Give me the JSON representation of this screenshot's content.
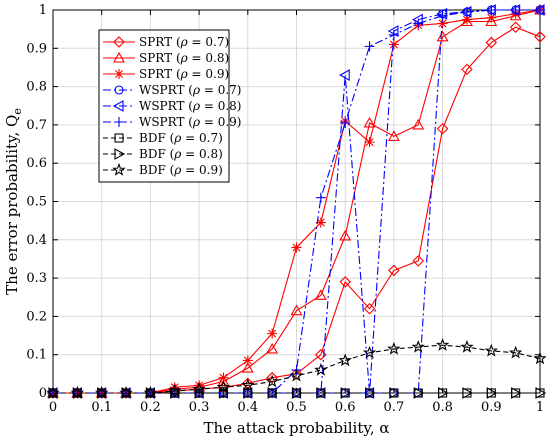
{
  "chart_data": {
    "type": "line",
    "xlabel": "The attack probability, α",
    "ylabel": "The error probability, Q",
    "ylabel_sub": "e",
    "xlim": [
      0,
      1
    ],
    "ylim": [
      0,
      1
    ],
    "x_ticks": [
      0,
      0.1,
      0.2,
      0.3,
      0.4,
      0.5,
      0.6,
      0.7,
      0.8,
      0.9,
      1
    ],
    "y_ticks": [
      0,
      0.1,
      0.2,
      0.3,
      0.4,
      0.5,
      0.6,
      0.7,
      0.8,
      0.9,
      1
    ],
    "x_tick_labels": [
      "0",
      "0.1",
      "0.2",
      "0.3",
      "0.4",
      "0.5",
      "0.6",
      "0.7",
      "0.8",
      "0.9",
      "1"
    ],
    "y_tick_labels": [
      "0",
      "0.1",
      "0.2",
      "0.3",
      "0.4",
      "0.5",
      "0.6",
      "0.7",
      "0.8",
      "0.9",
      "1"
    ],
    "grid": true,
    "legend_position": "upper-left",
    "x": [
      0,
      0.05,
      0.1,
      0.15,
      0.2,
      0.25,
      0.3,
      0.35,
      0.4,
      0.45,
      0.5,
      0.55,
      0.6,
      0.65,
      0.7,
      0.75,
      0.8,
      0.85,
      0.9,
      0.95,
      1.0
    ],
    "series": [
      {
        "name": "SPRT (ρ = 0.7)",
        "label_base": "SPRT",
        "rho": "0.7",
        "color": "#ff0000",
        "dash": "solid",
        "marker": "diamond",
        "values": [
          0,
          0,
          0,
          0,
          0,
          0.005,
          0.01,
          0.015,
          0.025,
          0.04,
          0.05,
          0.1,
          0.29,
          0.22,
          0.32,
          0.345,
          0.69,
          0.845,
          0.915,
          0.955,
          0.93
        ]
      },
      {
        "name": "SPRT (ρ = 0.8)",
        "label_base": "SPRT",
        "rho": "0.8",
        "color": "#ff0000",
        "dash": "solid",
        "marker": "triangle-up",
        "values": [
          0,
          0,
          0,
          0,
          0,
          0.01,
          0.015,
          0.03,
          0.065,
          0.115,
          0.215,
          0.255,
          0.41,
          0.705,
          0.67,
          0.7,
          0.93,
          0.97,
          0.97,
          0.985,
          1.0
        ]
      },
      {
        "name": "SPRT (ρ = 0.9)",
        "label_base": "SPRT",
        "rho": "0.9",
        "color": "#ff0000",
        "dash": "solid",
        "marker": "asterisk",
        "values": [
          0,
          0,
          0,
          0,
          0,
          0.015,
          0.02,
          0.04,
          0.085,
          0.155,
          0.38,
          0.445,
          0.71,
          0.655,
          0.91,
          0.96,
          0.965,
          0.975,
          0.98,
          0.99,
          1.0
        ]
      },
      {
        "name": "WSPRT (ρ = 0.7)",
        "label_base": "WSPRT",
        "rho": "0.7",
        "color": "#0000ff",
        "dash": "dashdot",
        "marker": "circle",
        "values": [
          0,
          0,
          0,
          0,
          0,
          0,
          0,
          0,
          0,
          0,
          0,
          0,
          0,
          0,
          0,
          0,
          0.99,
          0.995,
          1.0,
          1.0,
          1.0
        ]
      },
      {
        "name": "WSPRT (ρ = 0.8)",
        "label_base": "WSPRT",
        "rho": "0.8",
        "color": "#0000ff",
        "dash": "dashdot",
        "marker": "triangle-left",
        "values": [
          0,
          0,
          0,
          0,
          0,
          0,
          0,
          0,
          0,
          0,
          0,
          0,
          0.83,
          0,
          0.945,
          0.975,
          0.99,
          0.995,
          1.0,
          1.0,
          1.0
        ]
      },
      {
        "name": "WSPRT (ρ = 0.9)",
        "label_base": "WSPRT",
        "rho": "0.9",
        "color": "#0000ff",
        "dash": "dashdot",
        "marker": "plus",
        "values": [
          0,
          0,
          0,
          0,
          0,
          0,
          0,
          0,
          0,
          0,
          0.06,
          0.51,
          0.705,
          0.905,
          0.935,
          0.965,
          0.985,
          0.995,
          1.0,
          1.0,
          1.0
        ]
      },
      {
        "name": "BDF (ρ = 0.7)",
        "label_base": "BDF",
        "rho": "0.7",
        "color": "#000000",
        "dash": "dashed",
        "marker": "square",
        "values": [
          0,
          0,
          0,
          0,
          0,
          0,
          0,
          0,
          0,
          0,
          0,
          0,
          0,
          0,
          0,
          0,
          0,
          0,
          0,
          0,
          0
        ]
      },
      {
        "name": "BDF (ρ = 0.8)",
        "label_base": "BDF",
        "rho": "0.8",
        "color": "#000000",
        "dash": "dashed",
        "marker": "triangle-right",
        "values": [
          0,
          0,
          0,
          0,
          0,
          0,
          0,
          0,
          0,
          0,
          0,
          0,
          0,
          0,
          0,
          0,
          0,
          0,
          0,
          0,
          0
        ]
      },
      {
        "name": "BDF (ρ = 0.9)",
        "label_base": "BDF",
        "rho": "0.9",
        "color": "#000000",
        "dash": "dashed",
        "marker": "pentagram",
        "values": [
          0,
          0,
          0,
          0,
          0,
          0.005,
          0.01,
          0.015,
          0.02,
          0.03,
          0.045,
          0.06,
          0.085,
          0.105,
          0.115,
          0.12,
          0.125,
          0.12,
          0.11,
          0.105,
          0.09
        ]
      }
    ]
  }
}
